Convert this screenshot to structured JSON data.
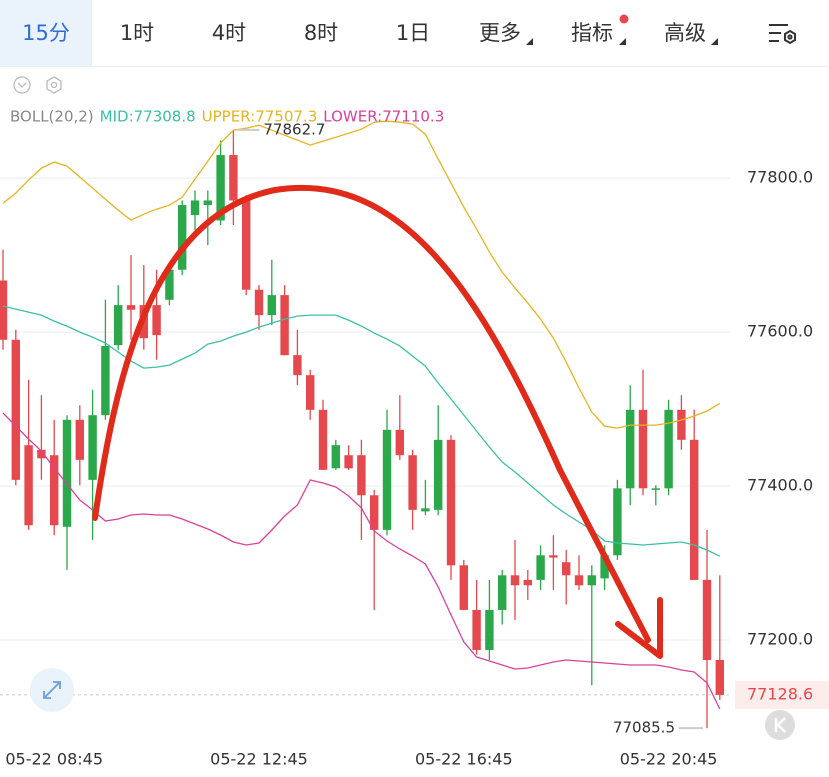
{
  "toolbar": {
    "tabs": [
      "15分",
      "1时",
      "4时",
      "8时",
      "1日",
      "更多",
      "指标",
      "高级"
    ]
  },
  "chart_data": {
    "type": "candlestick",
    "indicator": "BOLL(20,2)",
    "categories": [
      null,
      null,
      null,
      null,
      "05-22 08:45",
      null,
      null,
      null,
      null,
      null,
      null,
      null,
      null,
      null,
      null,
      null,
      null,
      null,
      null,
      null,
      "05-22 12:45",
      null,
      null,
      null,
      null,
      null,
      null,
      null,
      null,
      null,
      null,
      null,
      null,
      null,
      null,
      null,
      "05-22 16:45",
      null,
      null,
      null,
      null,
      null,
      null,
      null,
      null,
      null,
      null,
      null,
      null,
      null,
      null,
      null,
      "05-22 20:45",
      null,
      null,
      null,
      null
    ],
    "open": [
      77667,
      77590,
      77453,
      77447,
      77440,
      77347,
      77486,
      77408,
      77492,
      77583,
      77635,
      77635,
      77635,
      77642,
      77681,
      77752,
      77765,
      77745,
      77830,
      77771,
      77655,
      77622,
      77648,
      77570,
      77544,
      77499,
      77423,
      77440,
      77440,
      77388,
      77343,
      77473,
      77440,
      77367,
      77369,
      77460,
      77297,
      77239,
      77187,
      77239,
      77284,
      77278,
      77278,
      77310,
      77301,
      77284,
      77271,
      77280,
      77310,
      77397,
      77499,
      77395,
      77397,
      77499,
      77460,
      77278,
      77174
    ],
    "high": [
      77707,
      77603,
      77538,
      77518,
      77486,
      77492,
      77505,
      77525,
      77642,
      77661,
      77700,
      77687,
      77681,
      77687,
      77771,
      77784,
      77784,
      77849,
      77862.7,
      77778,
      77661,
      77694,
      77661,
      77603,
      77551,
      77512,
      77460,
      77453,
      77460,
      77395,
      77499,
      77518,
      77447,
      77408,
      77505,
      77466,
      77304,
      77278,
      77278,
      77291,
      77330,
      77291,
      77323,
      77336,
      77317,
      77310,
      77297,
      77323,
      77408,
      77531,
      77551,
      77401,
      77512,
      77518,
      77499,
      77343,
      77284
    ],
    "low": [
      77577,
      77401,
      77343,
      77408,
      77336,
      77291,
      77401,
      77330,
      77486,
      77577,
      77590,
      77577,
      77564,
      77635,
      77674,
      77732,
      77713,
      77739,
      77739,
      77648,
      77603,
      77609,
      77570,
      77531,
      77486,
      77421,
      77421,
      77421,
      77330,
      77239,
      77336,
      77434,
      77343,
      77362,
      77362,
      77278,
      77239,
      77181,
      77174,
      77220,
      77226,
      77252,
      77265,
      77265,
      77246,
      77265,
      77141,
      77265,
      77304,
      77375,
      77388,
      77375,
      77388,
      77447,
      77278,
      77085.5,
      77122
    ],
    "close": [
      77590,
      77408,
      77349,
      77436,
      77349,
      77486,
      77434,
      77492,
      77582,
      77635,
      77629,
      77592,
      77596,
      77681,
      77765,
      77771,
      77771,
      77830,
      77771,
      77655,
      77622,
      77648,
      77570,
      77544,
      77499,
      77421,
      77453,
      77423,
      77388,
      77343,
      77473,
      77440,
      77369,
      77371,
      77460,
      77297,
      77239,
      77187,
      77239,
      77284,
      77271,
      77271,
      77310,
      77307,
      77284,
      77271,
      77284,
      77310,
      77397,
      77499,
      77397,
      77397,
      77499,
      77460,
      77278,
      77174,
      77128.6
    ],
    "up_color": "#2aa84a",
    "down_color": "#e5484d",
    "series": [
      {
        "name": "MID:77308.8",
        "color": "#3cc0a5",
        "values": [
          77633.8,
          77629.9,
          77625.9,
          77622.1,
          77614.3,
          77607.8,
          77600,
          77593.5,
          77585.7,
          77574,
          77562.3,
          77553.2,
          77554.5,
          77557.1,
          77564.9,
          77572.7,
          77584.4,
          77588.3,
          77594.8,
          77600,
          77606.5,
          77611.7,
          77616.9,
          77620.8,
          77622.1,
          77622.1,
          77622.1,
          77615.6,
          77607.8,
          77598.7,
          77590.9,
          77581.8,
          77568.8,
          77555.8,
          77533.8,
          77513,
          77492.2,
          77471.4,
          77450.6,
          77431.2,
          77418.2,
          77403.9,
          77389.6,
          77375.3,
          77363.6,
          77353.2,
          77342.8,
          77328.6,
          77326,
          77324.7,
          77323.4,
          77324.7,
          77326,
          77327.3,
          77323.4,
          77316.9,
          77308.8
        ]
      },
      {
        "name": "UPPER:77507.3",
        "color": "#e6b422",
        "values": [
          77767.5,
          77780.5,
          77797.4,
          77813,
          77820.8,
          77815.6,
          77801.3,
          77787,
          77772.7,
          77758.4,
          77745.5,
          77753.2,
          77759.7,
          77764.9,
          77775.3,
          77798.7,
          77822.1,
          77845.5,
          77862.3,
          77864.9,
          77868.8,
          77862.3,
          77855.8,
          77849.4,
          77842.9,
          77848.1,
          77853.2,
          77858.4,
          77863.6,
          77872.7,
          77874,
          77872.7,
          77870.1,
          77857.1,
          77824.7,
          77793.5,
          77762.3,
          77733.8,
          77703.9,
          77677.9,
          77657.1,
          77637.7,
          77616.9,
          77592.2,
          77561,
          77527.3,
          77496.1,
          77477.9,
          77475.3,
          77479.2,
          77479.2,
          77479.2,
          77481.8,
          77485.7,
          77490.9,
          77497.4,
          77507.3
        ]
      },
      {
        "name": "LOWER:77110.3",
        "color": "#d9429c",
        "values": [
          77494.8,
          77477.9,
          77461,
          77445.5,
          77423.4,
          77402.6,
          77381.8,
          77368.8,
          77354.5,
          77357.1,
          77362.3,
          77363.6,
          77362.3,
          77362.3,
          77357.1,
          77350.6,
          77344.2,
          77336.4,
          77327.3,
          77323.4,
          77326,
          77342.9,
          77361,
          77375.3,
          77407.8,
          77403.9,
          77398.7,
          77387,
          77371.4,
          77341.6,
          77328.6,
          77318.2,
          77309.1,
          77298.7,
          77268.8,
          77232.5,
          77197.4,
          77177.9,
          77172.7,
          77167.5,
          77162.3,
          77163.6,
          77167.5,
          77171.4,
          77174,
          77172.7,
          77171.4,
          77170.1,
          77168.8,
          77167.5,
          77167.5,
          77167.5,
          77164.9,
          77161,
          77158.4,
          77144.2,
          77110.3
        ]
      }
    ],
    "ylim": [
      77070,
      77947
    ],
    "yticks": [
      {
        "value": 77200,
        "label": "77200.0"
      },
      {
        "value": 77400,
        "label": "77400.0"
      },
      {
        "value": 77600,
        "label": "77600.0"
      },
      {
        "value": 77800,
        "label": "77800.0"
      }
    ],
    "grid": true
  }
}
